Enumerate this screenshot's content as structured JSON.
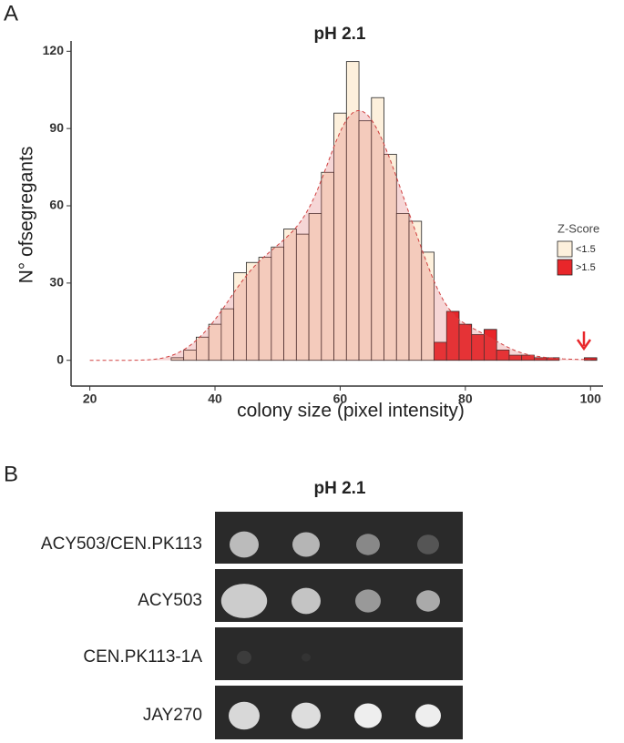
{
  "panel_labels": [
    "A",
    "B"
  ],
  "chart_data": {
    "type": "histogram",
    "title": "pH 2.1",
    "x_label": "colony size (pixel intensity)",
    "y_label": "N° ofsegregants",
    "bins": [
      33,
      35,
      37,
      39,
      41,
      43,
      45,
      47,
      49,
      51,
      53,
      55,
      57,
      59,
      61,
      63,
      65,
      67,
      69,
      71,
      73,
      75,
      77,
      79,
      81,
      83,
      85,
      87,
      89,
      91,
      93,
      95,
      97,
      99,
      101
    ],
    "series": [
      {
        "name": "<1.5",
        "color": "#fdf0dc",
        "values": [
          1,
          4,
          9,
          14,
          20,
          34,
          38,
          40,
          44,
          51,
          49,
          57,
          73,
          96,
          116,
          93,
          102,
          80,
          57,
          54,
          42,
          0,
          0,
          0,
          0,
          0,
          0,
          0,
          0,
          0,
          0,
          0,
          0,
          0
        ]
      },
      {
        "name": ">1.5",
        "color": "#e8262a",
        "values": [
          0,
          0,
          0,
          0,
          0,
          0,
          0,
          0,
          0,
          0,
          0,
          0,
          0,
          0,
          0,
          0,
          0,
          0,
          0,
          0,
          0,
          7,
          19,
          14,
          10,
          12,
          4,
          2,
          2,
          1,
          1,
          0,
          0,
          1
        ]
      }
    ],
    "legend_title": "Z-Score",
    "xlim": [
      17,
      102
    ],
    "xticks": [
      20,
      40,
      60,
      80,
      100
    ],
    "ylim": [
      -10,
      124
    ],
    "yticks": [
      0,
      30,
      60,
      90,
      120
    ]
  },
  "plate": {
    "title": "pH 2.1",
    "rows": [
      "ACY503/CEN.PK113",
      "ACY503",
      "CEN.PK113-1A",
      "JAY270"
    ]
  }
}
